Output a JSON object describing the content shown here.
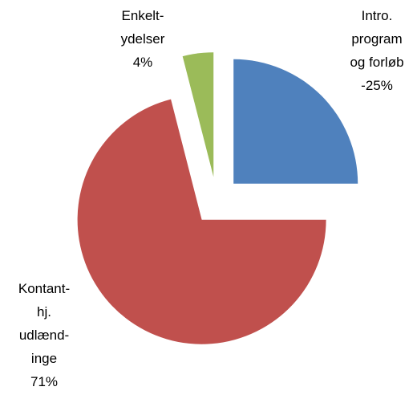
{
  "chart_data": {
    "type": "pie",
    "categories": [
      [
        "Intro.",
        "program",
        "og forløb",
        "-"
      ],
      [
        "Kontant-",
        "hj.",
        "udlænd-",
        "inge"
      ],
      [
        "Enkelt-",
        "ydelser"
      ]
    ],
    "values": [
      25,
      71,
      4
    ],
    "value_labels": [
      "25%",
      "71%",
      "4%"
    ],
    "colors": [
      "#4f81bd",
      "#c0504d",
      "#9bbb59"
    ]
  }
}
